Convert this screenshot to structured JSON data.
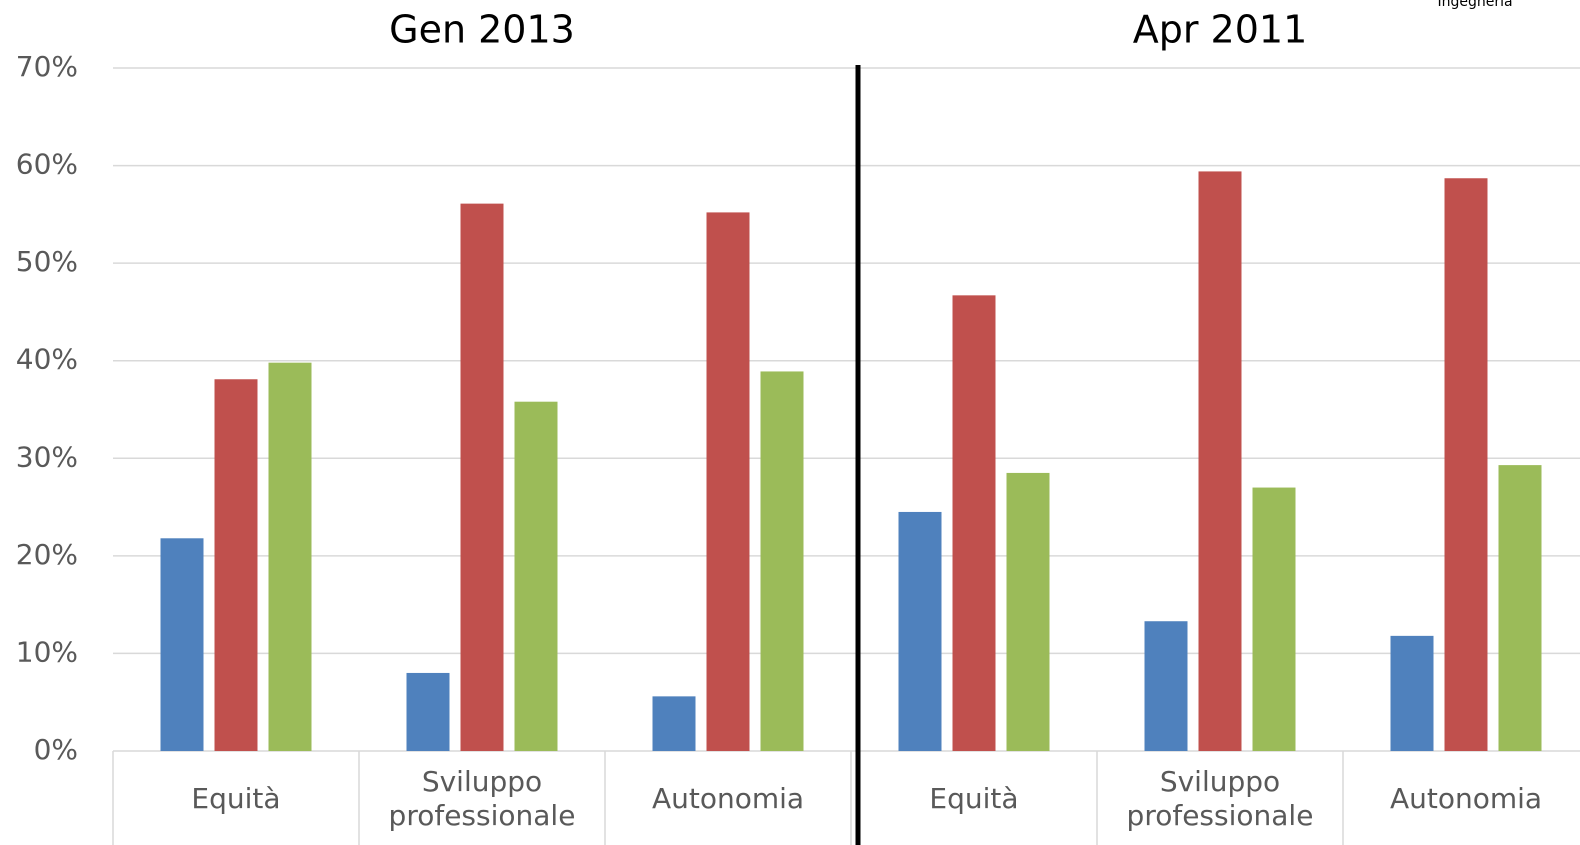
{
  "chart_data": {
    "type": "bar",
    "annotation": "Ingegneria",
    "panel_titles": [
      "Gen 2013",
      "Apr 2011"
    ],
    "categories": [
      "Equità",
      "Sviluppo professionale",
      "Autonomia",
      "Equità",
      "Sviluppo professionale",
      "Autonomia"
    ],
    "series": [
      {
        "color": "#4f81bd",
        "values": [
          21.8,
          8.0,
          5.6,
          24.5,
          13.3,
          11.8
        ]
      },
      {
        "color": "#c0504d",
        "values": [
          38.1,
          56.1,
          55.2,
          46.7,
          59.4,
          58.7
        ]
      },
      {
        "color": "#9bbb59",
        "values": [
          39.8,
          35.8,
          38.9,
          28.5,
          27.0,
          29.3
        ]
      }
    ],
    "ylim": [
      0,
      70
    ],
    "yticks": [
      {
        "value": 0,
        "label": "0%"
      },
      {
        "value": 10,
        "label": "10%"
      },
      {
        "value": 20,
        "label": "20%"
      },
      {
        "value": 30,
        "label": "30%"
      },
      {
        "value": 40,
        "label": "40%"
      },
      {
        "value": 50,
        "label": "50%"
      },
      {
        "value": 60,
        "label": "60%"
      },
      {
        "value": 70,
        "label": "70%"
      }
    ],
    "grid": true
  }
}
